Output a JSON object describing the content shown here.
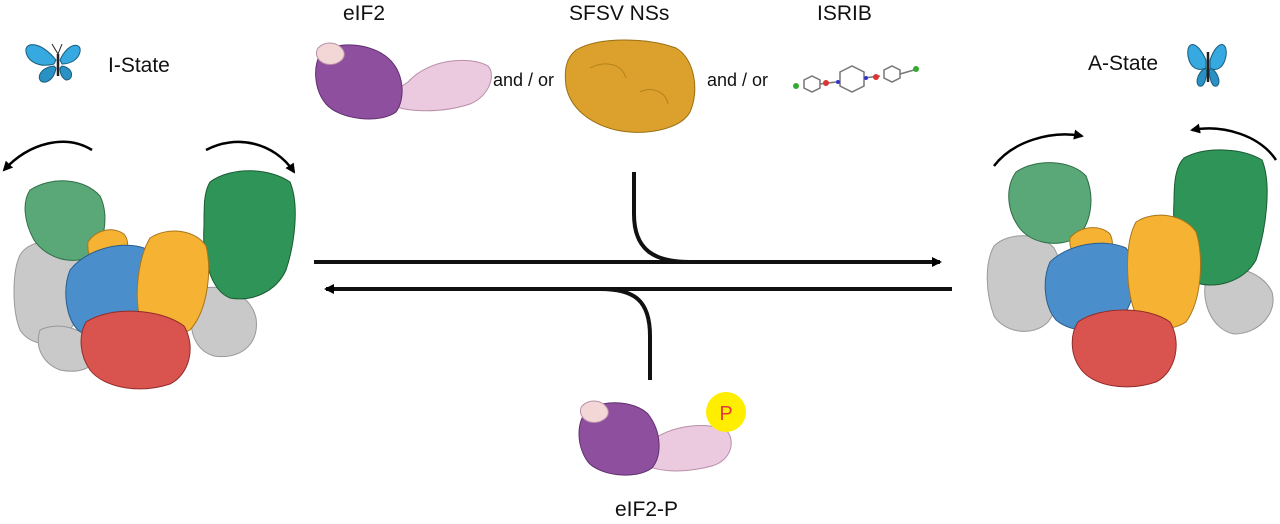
{
  "states": {
    "left": {
      "label": "I-State"
    },
    "right": {
      "label": "A-State"
    }
  },
  "ligands": {
    "eif2": {
      "label": "eIF2"
    },
    "sfsv": {
      "label": "SFSV NSs"
    },
    "isrib": {
      "label": "ISRIB"
    },
    "connector_1": "and / or",
    "connector_2": "and / or"
  },
  "bottom": {
    "label": "eIF2-P",
    "phospho_badge": "P"
  },
  "colors": {
    "green_light": "#5aa777",
    "green_dark": "#2f9457",
    "blue": "#4a8fcc",
    "yellow": "#f5b233",
    "red": "#d9534f",
    "gray": "#c9c9c9",
    "purple": "#8e4f9e",
    "pink": "#ebc9df",
    "gold": "#dba12c",
    "butterfly": "#35a9e0",
    "badge": "#ffee00",
    "badge_text": "#e53935"
  }
}
